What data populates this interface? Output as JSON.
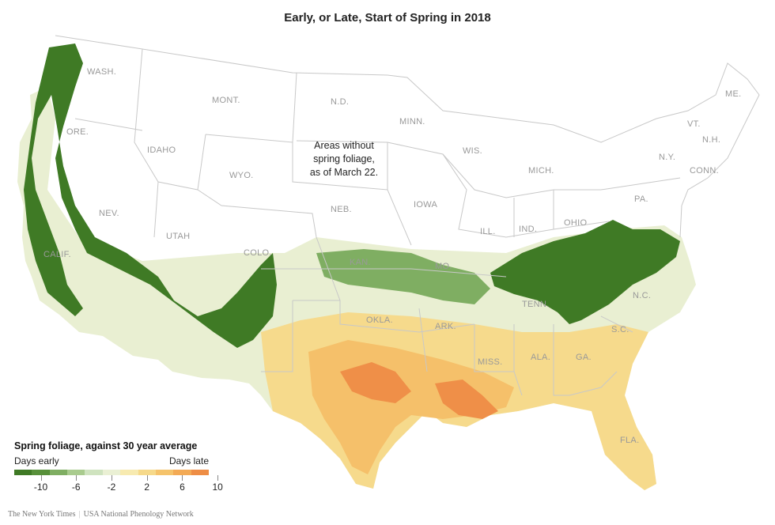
{
  "title": "Early, or Late, Start of Spring in 2018",
  "note": [
    "Areas without",
    "spring foliage,",
    "as of March 22."
  ],
  "legend": {
    "title": "Spring foliage, against 30 year average",
    "left_label": "Days early",
    "right_label": "Days late",
    "colors": [
      "#3f7a25",
      "#58903a",
      "#7fae62",
      "#a9cb8e",
      "#cfe3bf",
      "#eaf0d4",
      "#f7eab0",
      "#f6d98a",
      "#f5c36b",
      "#f3aa55",
      "#ee8d45"
    ],
    "tick_labels": [
      "-10",
      "-6",
      "-2",
      "2",
      "6",
      "10"
    ]
  },
  "states": {
    "WASH.": "WASH.",
    "ORE.": "ORE.",
    "IDAHO": "IDAHO",
    "MONT.": "MONT.",
    "WYO.": "WYO.",
    "NEV.": "NEV.",
    "UTAH": "UTAH",
    "CALIF.": "CALIF.",
    "COLO.": "COLO.",
    "N.D.": "N.D.",
    "NEB.": "NEB.",
    "MINN.": "MINN.",
    "IOWA": "IOWA",
    "WIS.": "WIS.",
    "MICH.": "MICH.",
    "ILL.": "ILL.",
    "IND.": "IND.",
    "OHIO": "OHIO",
    "PA.": "PA.",
    "N.Y.": "N.Y.",
    "VT.": "VT.",
    "N.H.": "N.H.",
    "ME.": "ME.",
    "CONN.": "CONN.",
    "KAN.": "KAN.",
    "MO.": "MO.",
    "TENN.": "TENN.",
    "N.C.": "N.C.",
    "OKLA.": "OKLA.",
    "ARK.": "ARK.",
    "S.C.": "S.C.",
    "MISS.": "MISS.",
    "ALA.": "ALA.",
    "GA.": "GA.",
    "FLA.": "FLA."
  },
  "credit": {
    "publisher": "The New York Times",
    "source": "USA National Phenology Network"
  }
}
